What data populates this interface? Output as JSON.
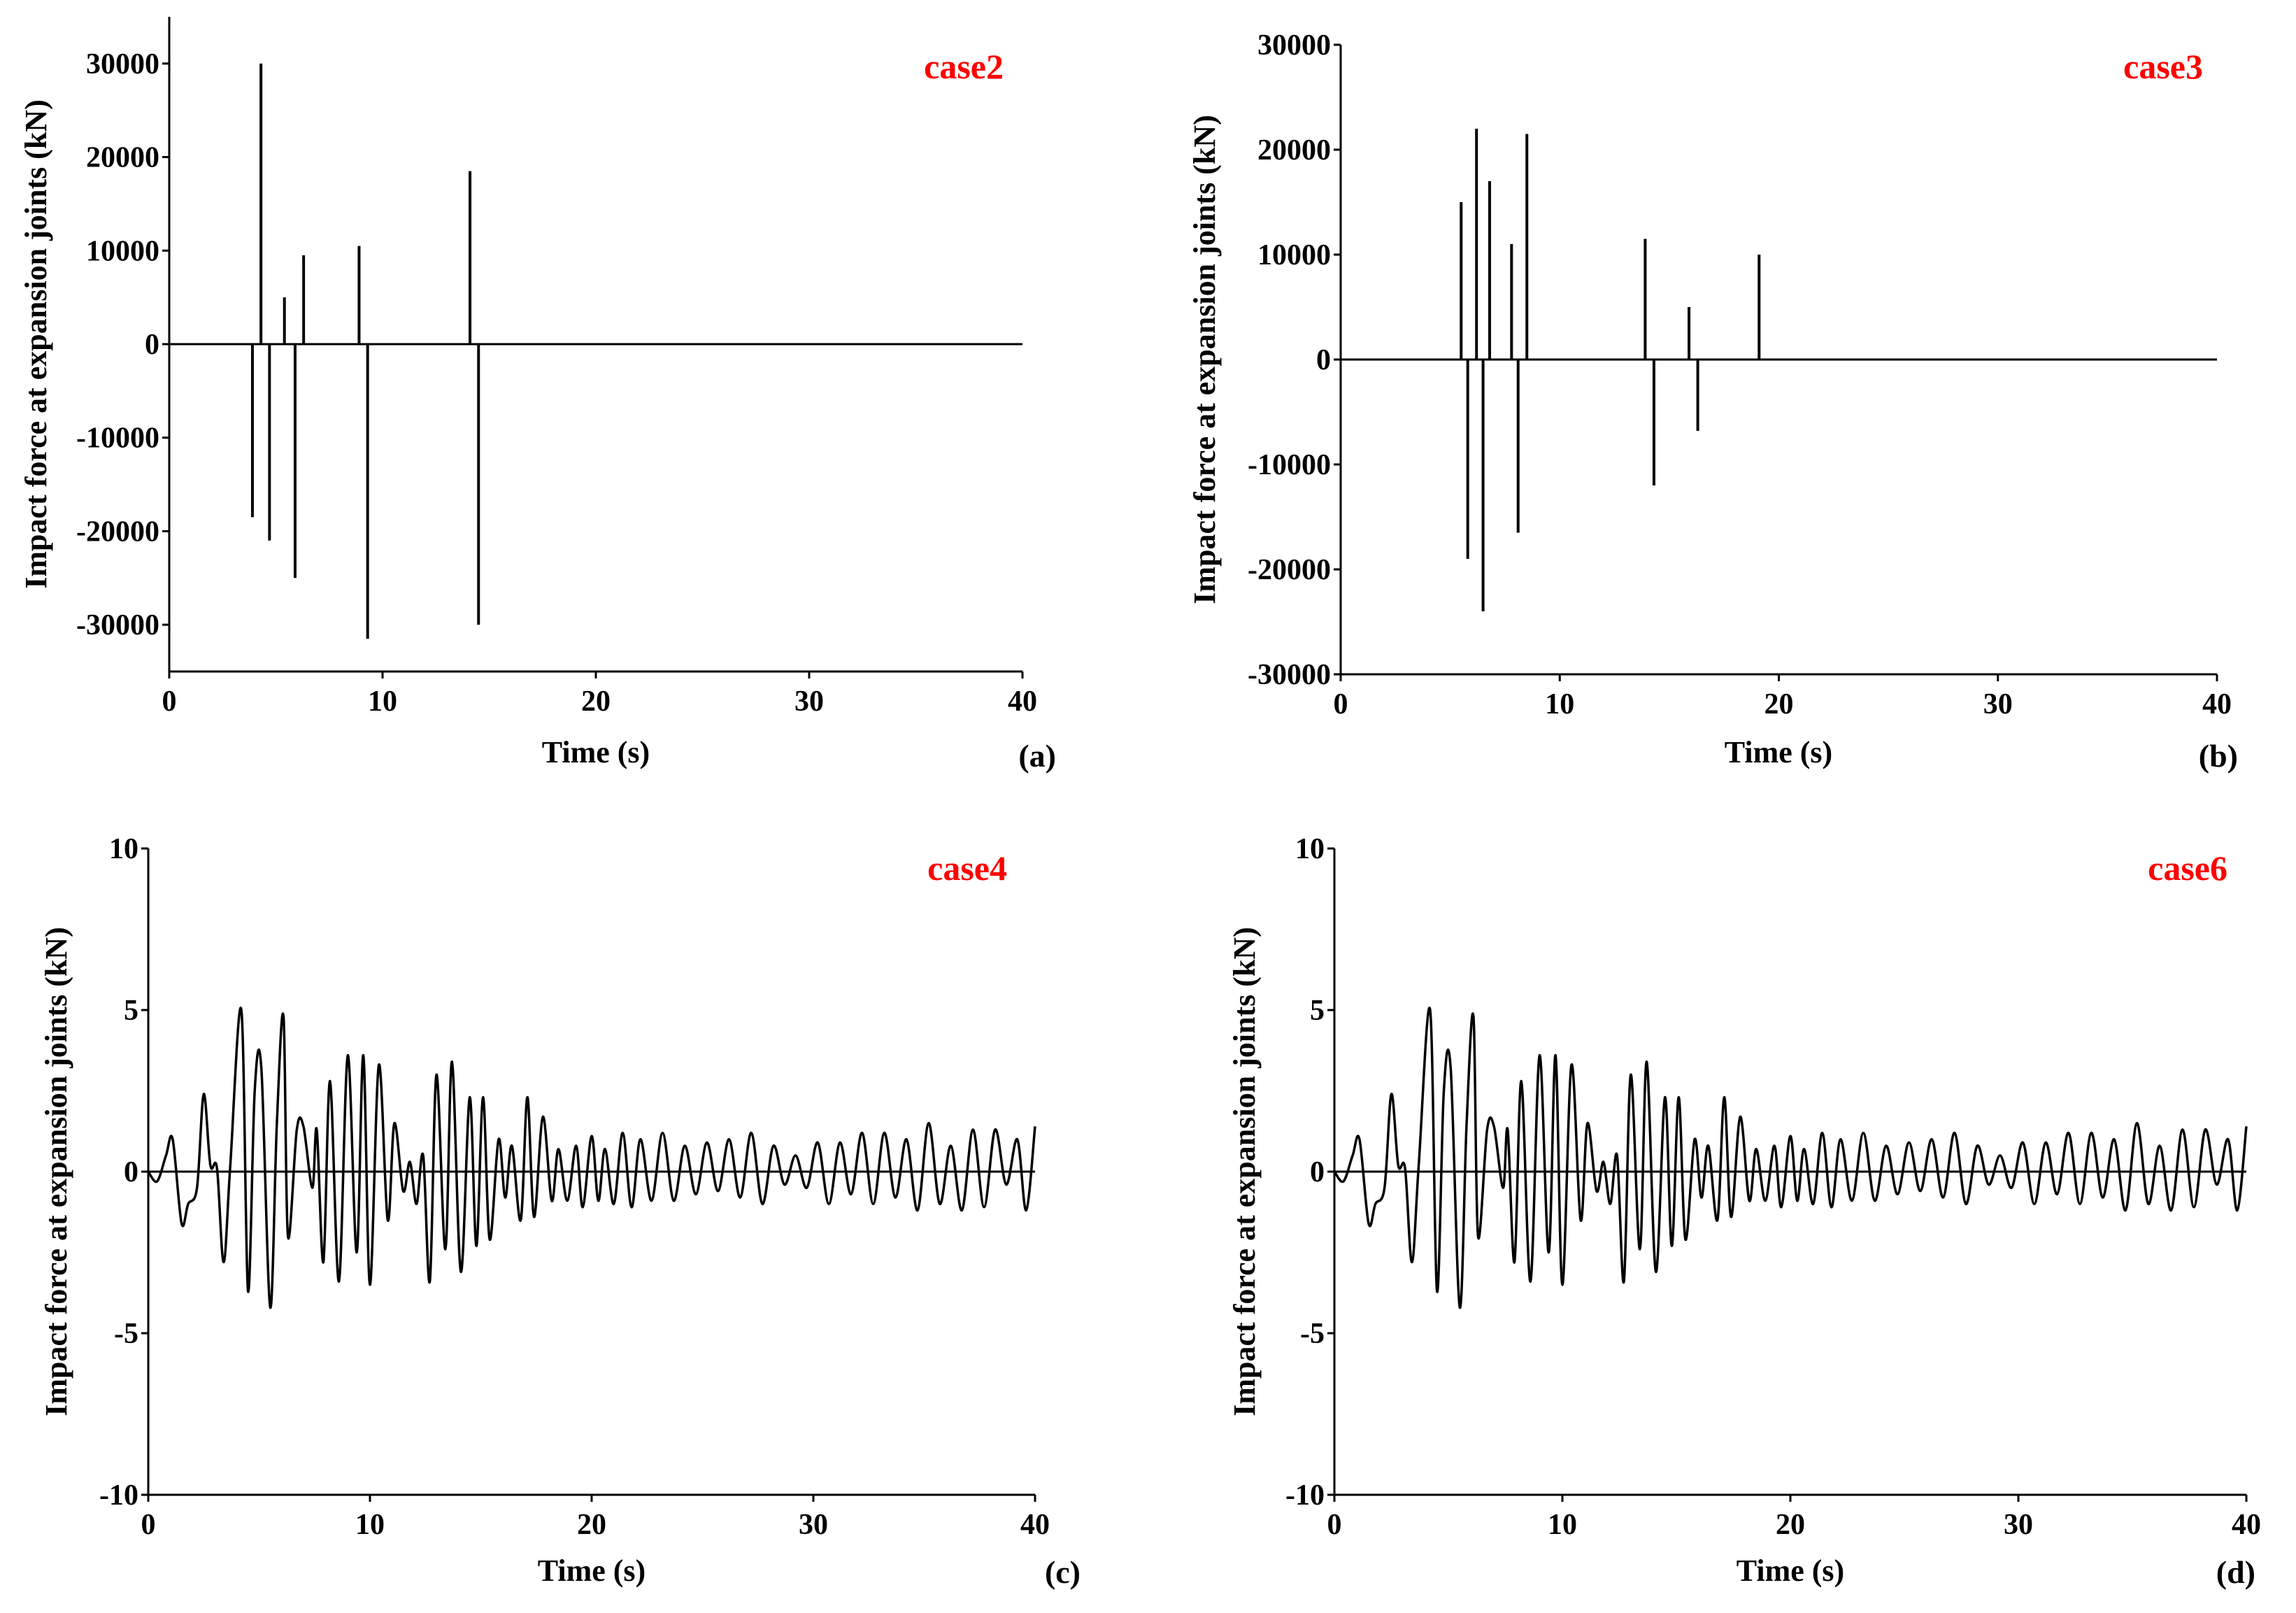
{
  "chart_data": [
    {
      "panel": "(a)",
      "case": "case2",
      "type": "line",
      "xlabel": "Time (s)",
      "ylabel": "Impact force at expansion joints (kN)",
      "xlim": [
        0,
        40
      ],
      "ylim": [
        -35000,
        35000
      ],
      "xticks": [
        0,
        10,
        20,
        30,
        40
      ],
      "yticks": [
        30000,
        20000,
        10000,
        0,
        -10000,
        -20000,
        -30000
      ],
      "series": [
        {
          "name": "impact force",
          "style": "spikes",
          "x": [
            3.9,
            4.3,
            4.7,
            5.4,
            5.9,
            6.3,
            8.9,
            9.3,
            14.1,
            14.5
          ],
          "y": [
            -18500,
            30000,
            -21000,
            5000,
            -25000,
            9500,
            10500,
            -31500,
            18500,
            -30000
          ]
        }
      ]
    },
    {
      "panel": "(b)",
      "case": "case3",
      "type": "line",
      "xlabel": "Time (s)",
      "ylabel": "Impact force at expansion joints (kN)",
      "xlim": [
        0,
        40
      ],
      "ylim": [
        -30000,
        30000
      ],
      "xticks": [
        0,
        10,
        20,
        30,
        40
      ],
      "yticks": [
        30000,
        20000,
        10000,
        0,
        -10000,
        -20000,
        -30000
      ],
      "series": [
        {
          "name": "impact force",
          "style": "spikes",
          "x": [
            5.5,
            5.8,
            6.2,
            6.5,
            6.8,
            7.8,
            8.1,
            8.5,
            13.9,
            14.3,
            15.9,
            16.3,
            19.1
          ],
          "y": [
            15000,
            -19000,
            22000,
            -24000,
            17000,
            11000,
            -16500,
            21500,
            11500,
            -12000,
            5000,
            -6800,
            10000
          ]
        }
      ]
    },
    {
      "panel": "(c)",
      "case": "case4",
      "type": "line",
      "xlabel": "Time (s)",
      "ylabel": "Impact force at expansion joints (kN)",
      "xlim": [
        0,
        40
      ],
      "ylim": [
        -10,
        10
      ],
      "xticks": [
        0,
        10,
        20,
        30,
        40
      ],
      "yticks": [
        10,
        5,
        0,
        -5,
        -10
      ],
      "series": [
        {
          "name": "impact force",
          "style": "line",
          "x": [
            0,
            0.4,
            0.8,
            1.1,
            1.5,
            1.8,
            2.2,
            2.5,
            2.8,
            3.1,
            3.4,
            3.7,
            4.2,
            4.5,
            4.8,
            5.1,
            5.5,
            5.8,
            6.1,
            6.3,
            6.7,
            7.0,
            7.4,
            7.6,
            7.9,
            8.2,
            8.6,
            9.0,
            9.4,
            9.7,
            10.0,
            10.4,
            10.8,
            11.1,
            11.5,
            11.8,
            12.1,
            12.4,
            12.7,
            13.0,
            13.4,
            13.7,
            14.1,
            14.5,
            14.8,
            15.1,
            15.4,
            15.8,
            16.1,
            16.4,
            16.8,
            17.1,
            17.4,
            17.8,
            18.2,
            18.5,
            18.9,
            19.3,
            19.6,
            20.0,
            20.3,
            20.6,
            21.0,
            21.4,
            21.8,
            22.2,
            22.7,
            23.2,
            23.7,
            24.2,
            24.7,
            25.2,
            25.7,
            26.2,
            26.7,
            27.2,
            27.7,
            28.2,
            28.7,
            29.2,
            29.7,
            30.2,
            30.7,
            31.2,
            31.7,
            32.2,
            32.7,
            33.2,
            33.7,
            34.2,
            34.7,
            35.2,
            35.7,
            36.2,
            36.7,
            37.2,
            37.7,
            38.2,
            38.7,
            39.2,
            39.6,
            40.0
          ],
          "y": [
            0,
            -0.3,
            0.5,
            1.0,
            -1.6,
            -1.0,
            -0.5,
            2.4,
            0.2,
            0.1,
            -2.8,
            0.2,
            5.0,
            -3.7,
            2.5,
            3.2,
            -4.2,
            1.5,
            4.8,
            -2.0,
            1.3,
            1.4,
            -0.5,
            1.3,
            -2.8,
            2.8,
            -3.4,
            3.6,
            -2.5,
            3.6,
            -3.5,
            3.3,
            -1.5,
            1.5,
            -0.6,
            0.3,
            -1.0,
            0.5,
            -3.4,
            3.0,
            -2.4,
            3.4,
            -3.1,
            2.3,
            -2.3,
            2.3,
            -2.1,
            1.0,
            -0.8,
            0.8,
            -1.5,
            2.3,
            -1.4,
            1.7,
            -0.9,
            0.7,
            -0.9,
            0.8,
            -1.1,
            1.1,
            -0.9,
            0.7,
            -1.0,
            1.2,
            -1.1,
            1.0,
            -0.9,
            1.2,
            -0.9,
            0.8,
            -0.7,
            0.9,
            -0.6,
            1.0,
            -0.8,
            1.2,
            -1.0,
            0.8,
            -0.4,
            0.5,
            -0.5,
            0.9,
            -1.0,
            0.9,
            -0.7,
            1.2,
            -1.0,
            1.2,
            -0.8,
            1.0,
            -1.2,
            1.5,
            -1.0,
            0.8,
            -1.2,
            1.3,
            -1.1,
            1.3,
            -0.4,
            1.0,
            -1.2,
            1.4
          ]
        }
      ]
    },
    {
      "panel": "(d)",
      "case": "case6",
      "type": "line",
      "xlabel": "Time (s)",
      "ylabel": "Impact force at expansion joints (kN)",
      "xlim": [
        0,
        40
      ],
      "ylim": [
        -10,
        10
      ],
      "xticks": [
        0,
        10,
        20,
        30,
        40
      ],
      "yticks": [
        10,
        5,
        0,
        -5,
        -10
      ],
      "series": [
        {
          "name": "impact force",
          "style": "line",
          "x": [
            0,
            0.4,
            0.8,
            1.1,
            1.5,
            1.8,
            2.2,
            2.5,
            2.8,
            3.1,
            3.4,
            3.7,
            4.2,
            4.5,
            4.8,
            5.1,
            5.5,
            5.8,
            6.1,
            6.3,
            6.7,
            7.0,
            7.4,
            7.6,
            7.9,
            8.2,
            8.6,
            9.0,
            9.4,
            9.7,
            10.0,
            10.4,
            10.8,
            11.1,
            11.5,
            11.8,
            12.1,
            12.4,
            12.7,
            13.0,
            13.4,
            13.7,
            14.1,
            14.5,
            14.8,
            15.1,
            15.4,
            15.8,
            16.1,
            16.4,
            16.8,
            17.1,
            17.4,
            17.8,
            18.2,
            18.5,
            18.9,
            19.3,
            19.6,
            20.0,
            20.3,
            20.6,
            21.0,
            21.4,
            21.8,
            22.2,
            22.7,
            23.2,
            23.7,
            24.2,
            24.7,
            25.2,
            25.7,
            26.2,
            26.7,
            27.2,
            27.7,
            28.2,
            28.7,
            29.2,
            29.7,
            30.2,
            30.7,
            31.2,
            31.7,
            32.2,
            32.7,
            33.2,
            33.7,
            34.2,
            34.7,
            35.2,
            35.7,
            36.2,
            36.7,
            37.2,
            37.7,
            38.2,
            38.7,
            39.2,
            39.6,
            40.0
          ],
          "y": [
            0,
            -0.3,
            0.5,
            1.0,
            -1.6,
            -1.0,
            -0.5,
            2.4,
            0.2,
            0.1,
            -2.8,
            0.2,
            5.0,
            -3.7,
            2.5,
            3.2,
            -4.2,
            1.5,
            4.8,
            -2.0,
            1.3,
            1.4,
            -0.5,
            1.3,
            -2.8,
            2.8,
            -3.4,
            3.6,
            -2.5,
            3.6,
            -3.5,
            3.3,
            -1.5,
            1.5,
            -0.6,
            0.3,
            -1.0,
            0.5,
            -3.4,
            3.0,
            -2.4,
            3.4,
            -3.1,
            2.3,
            -2.3,
            2.3,
            -2.1,
            1.0,
            -0.8,
            0.8,
            -1.5,
            2.3,
            -1.4,
            1.7,
            -0.9,
            0.7,
            -0.9,
            0.8,
            -1.1,
            1.1,
            -0.9,
            0.7,
            -1.0,
            1.2,
            -1.1,
            1.0,
            -0.9,
            1.2,
            -0.9,
            0.8,
            -0.7,
            0.9,
            -0.6,
            1.0,
            -0.8,
            1.2,
            -1.0,
            0.8,
            -0.4,
            0.5,
            -0.5,
            0.9,
            -1.0,
            0.9,
            -0.7,
            1.2,
            -1.0,
            1.2,
            -0.8,
            1.0,
            -1.2,
            1.5,
            -1.0,
            0.8,
            -1.2,
            1.3,
            -1.1,
            1.3,
            -0.4,
            1.0,
            -1.2,
            1.4
          ]
        }
      ]
    }
  ]
}
